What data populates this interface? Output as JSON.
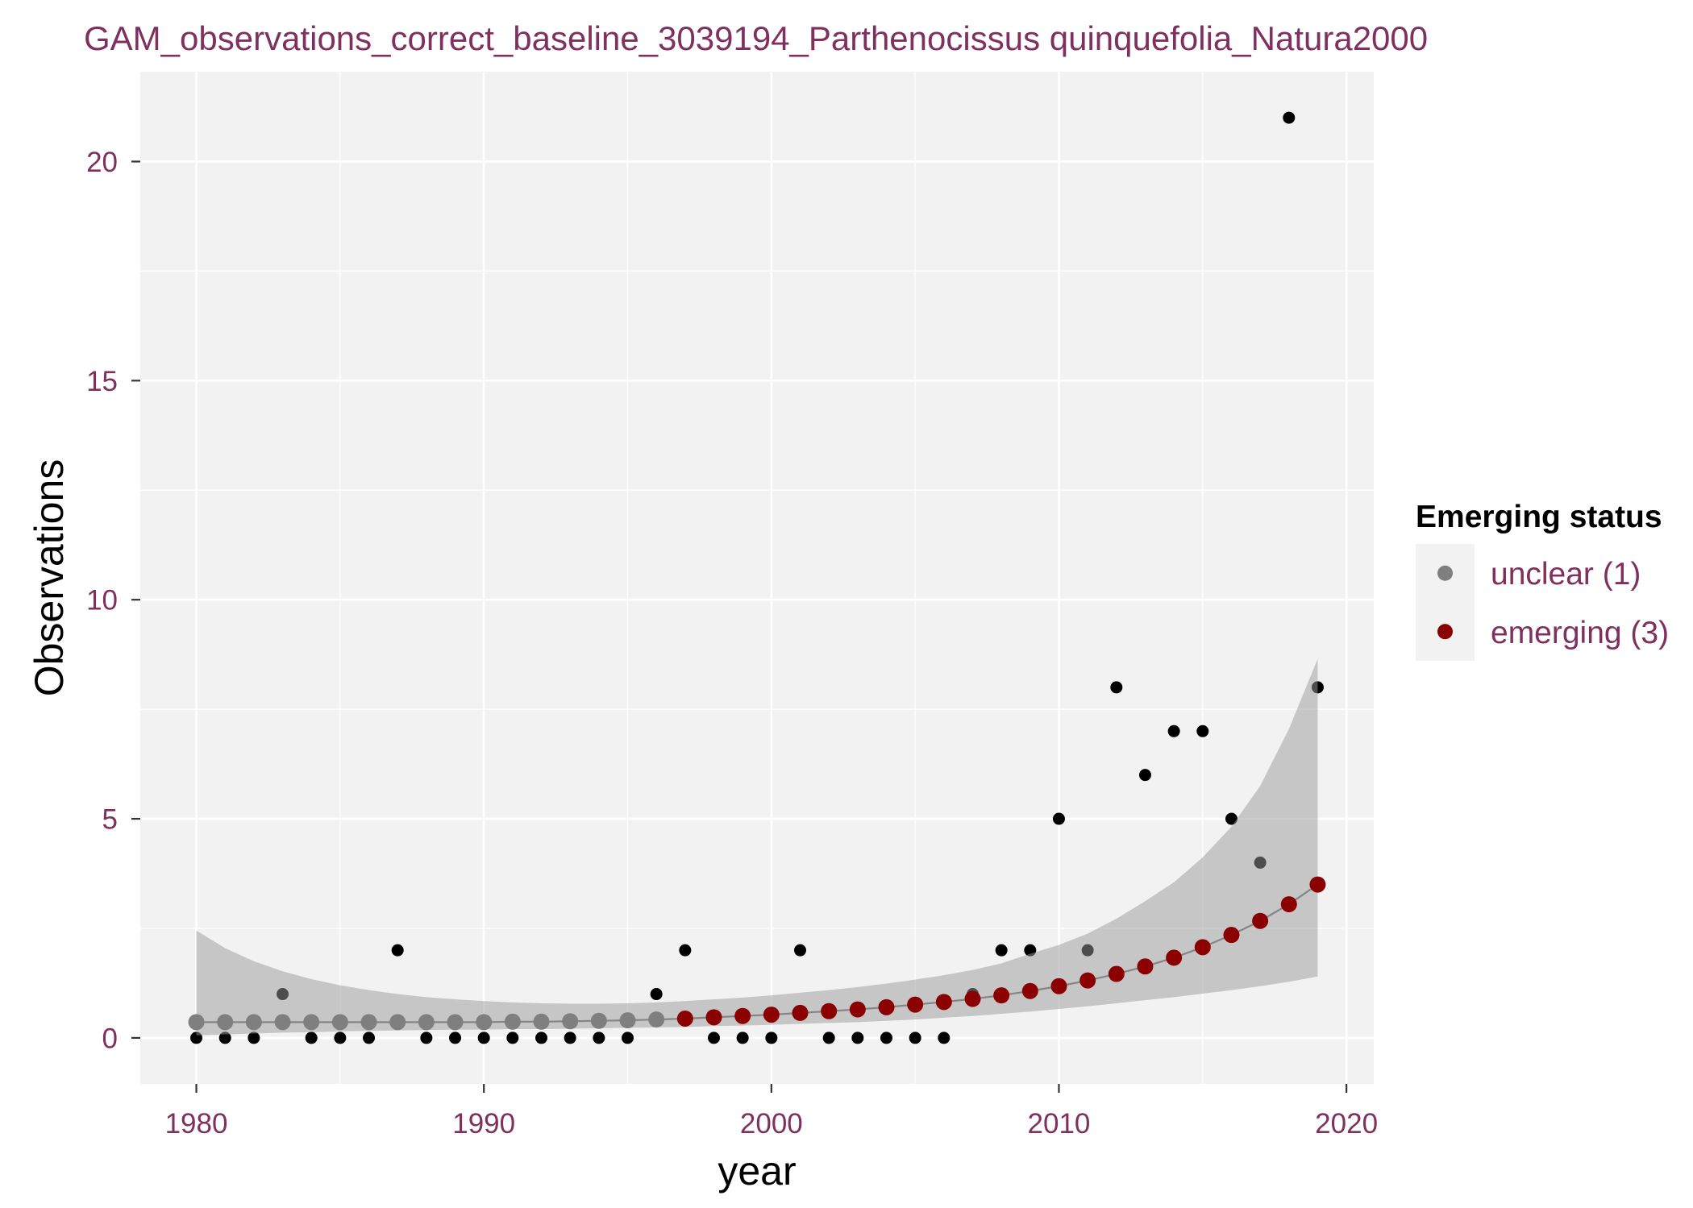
{
  "colors": {
    "text_accent": "#80305E",
    "panel_background": "#F2F2F2",
    "grid": "#FFFFFF",
    "observed_point": "#000000",
    "ribbon": "#999999",
    "fitted_line": "#858585",
    "axis_tick": "#333333"
  },
  "chart_data": {
    "type": "scatter",
    "title": "GAM_observations_correct_baseline_3039194_Parthenocissus quinquefolia_Natura2000",
    "xlabel": "year",
    "ylabel": "Observations",
    "xlim": [
      1978.05,
      2020.95
    ],
    "ylim": [
      -1.05,
      22.05
    ],
    "x_ticks": [
      1980,
      1990,
      2000,
      2010,
      2020
    ],
    "y_ticks": [
      0,
      5,
      10,
      15,
      20
    ],
    "grid": true,
    "x": [
      1980,
      1981,
      1982,
      1983,
      1984,
      1985,
      1986,
      1987,
      1988,
      1989,
      1990,
      1991,
      1992,
      1993,
      1994,
      1995,
      1996,
      1997,
      1998,
      1999,
      2000,
      2001,
      2002,
      2003,
      2004,
      2005,
      2006,
      2007,
      2008,
      2009,
      2010,
      2011,
      2012,
      2013,
      2014,
      2015,
      2016,
      2017,
      2018,
      2019
    ],
    "observed": [
      0,
      0,
      0,
      1,
      0,
      0,
      0,
      2,
      0,
      0,
      0,
      0,
      0,
      0,
      0,
      0,
      1,
      2,
      0,
      0,
      0,
      2,
      0,
      0,
      0,
      0,
      0,
      1,
      2,
      2,
      5,
      2,
      8,
      6,
      7,
      7,
      5,
      4,
      21,
      8
    ],
    "fitted": [
      0.36,
      0.36,
      0.36,
      0.36,
      0.36,
      0.36,
      0.36,
      0.36,
      0.36,
      0.36,
      0.36,
      0.37,
      0.37,
      0.38,
      0.39,
      0.4,
      0.42,
      0.44,
      0.47,
      0.5,
      0.53,
      0.57,
      0.61,
      0.65,
      0.7,
      0.76,
      0.82,
      0.89,
      0.97,
      1.07,
      1.18,
      1.31,
      1.46,
      1.63,
      1.83,
      2.07,
      2.35,
      2.67,
      3.05,
      3.5
    ],
    "ci_lower": [
      0.06,
      0.08,
      0.1,
      0.12,
      0.13,
      0.15,
      0.16,
      0.17,
      0.18,
      0.19,
      0.19,
      0.2,
      0.2,
      0.21,
      0.22,
      0.23,
      0.24,
      0.25,
      0.27,
      0.28,
      0.3,
      0.32,
      0.34,
      0.36,
      0.39,
      0.42,
      0.46,
      0.5,
      0.55,
      0.6,
      0.66,
      0.72,
      0.79,
      0.86,
      0.93,
      1.01,
      1.09,
      1.18,
      1.28,
      1.4
    ],
    "ci_upper": [
      2.45,
      2.05,
      1.75,
      1.52,
      1.34,
      1.2,
      1.09,
      1.0,
      0.93,
      0.88,
      0.84,
      0.81,
      0.79,
      0.78,
      0.78,
      0.79,
      0.81,
      0.84,
      0.88,
      0.92,
      0.97,
      1.03,
      1.09,
      1.16,
      1.24,
      1.33,
      1.43,
      1.55,
      1.7,
      1.92,
      2.12,
      2.38,
      2.72,
      3.12,
      3.55,
      4.12,
      4.82,
      5.75,
      7.05,
      8.65
    ],
    "fitted_status_code": [
      1,
      1,
      1,
      1,
      1,
      1,
      1,
      1,
      1,
      1,
      1,
      1,
      1,
      1,
      1,
      1,
      1,
      3,
      3,
      3,
      3,
      3,
      3,
      3,
      3,
      3,
      3,
      3,
      3,
      3,
      3,
      3,
      3,
      3,
      3,
      3,
      3,
      3,
      3,
      3
    ],
    "legend": {
      "title": "Emerging status",
      "position": "right",
      "entries": [
        {
          "code": 1,
          "label": "unclear (1)",
          "color": "#7F7F7F"
        },
        {
          "code": 3,
          "label": "emerging (3)",
          "color": "#8B0000"
        }
      ]
    }
  }
}
